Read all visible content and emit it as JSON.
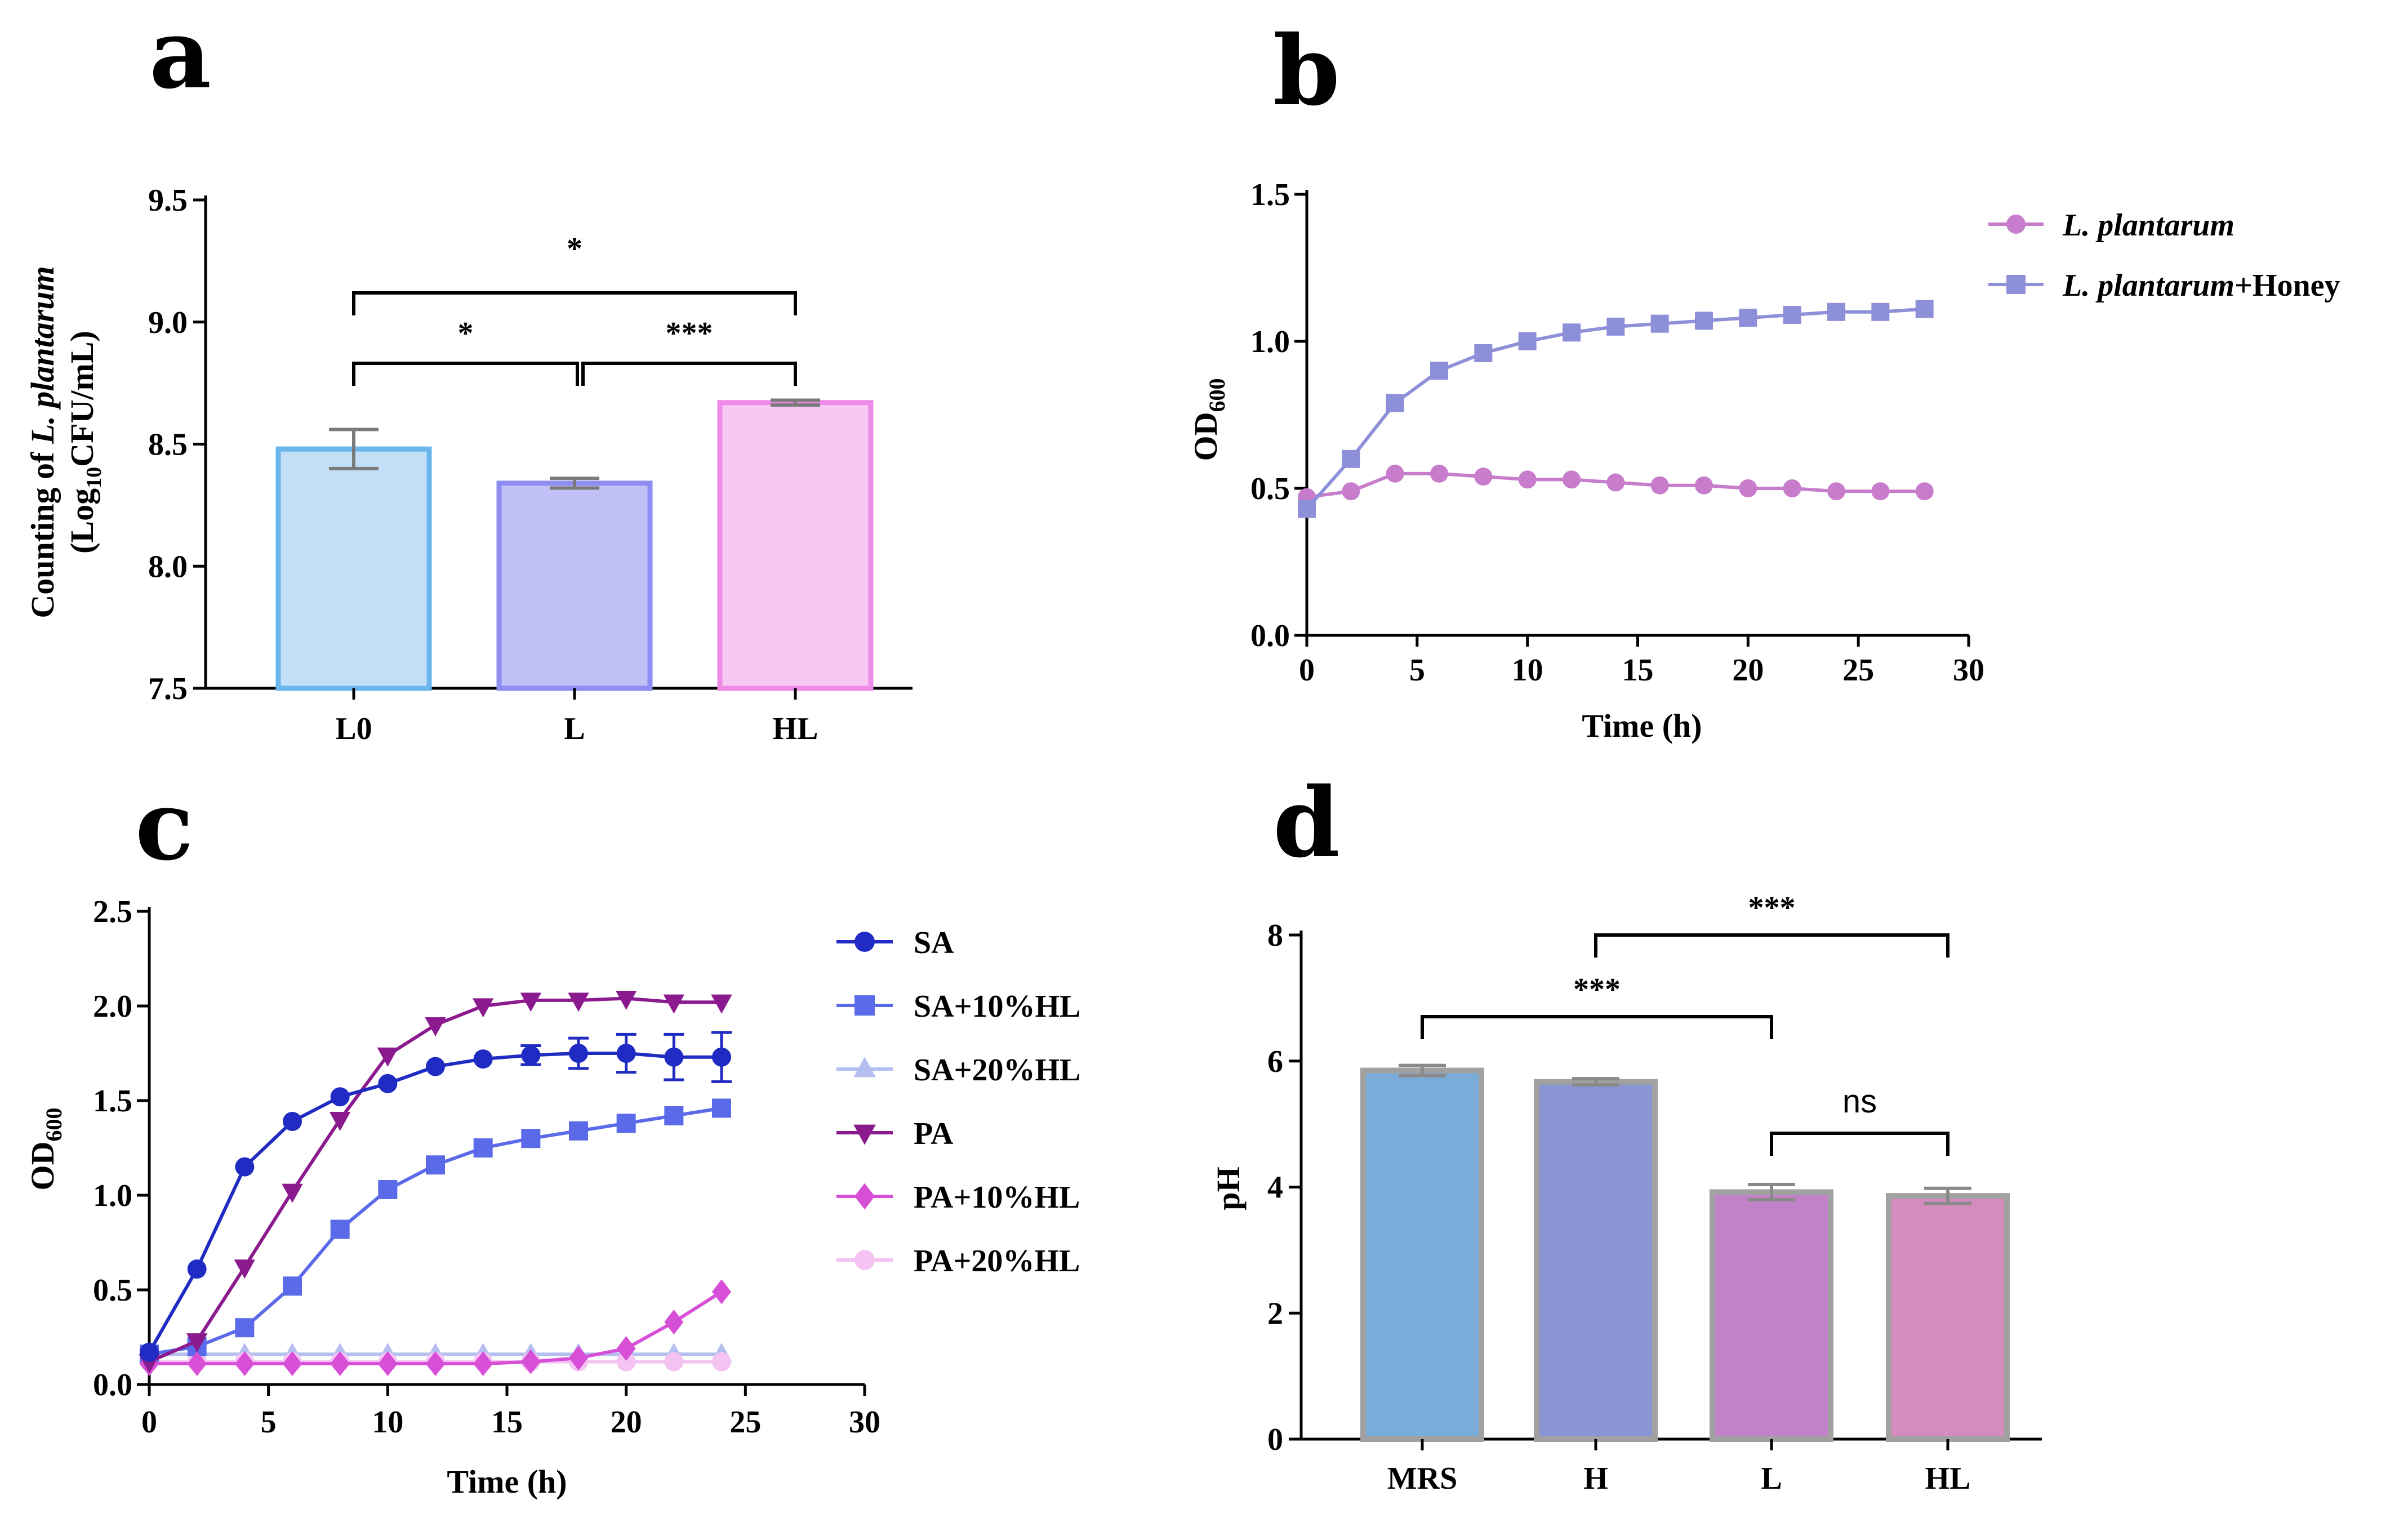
{
  "chart_data": [
    {
      "panel": "a",
      "type": "bar",
      "ylabel_prefix": "Counting of ",
      "ylabel_species": "L. plantarum",
      "ylabel_line2_a": "(Log",
      "ylabel_line2_sub": "10",
      "ylabel_line2_b": "CFU/mL)",
      "ylim": [
        7.5,
        9.5
      ],
      "yticks": [
        "7.5",
        "8.0",
        "8.5",
        "9.0",
        "9.5"
      ],
      "categories": [
        "L0",
        "L",
        "HL"
      ],
      "values": [
        8.48,
        8.34,
        8.67
      ],
      "errors": [
        0.08,
        0.02,
        0.01
      ],
      "colors_fill": [
        "#c3dff7",
        "#c1c1f7",
        "#f6c8f3"
      ],
      "colors_edge": [
        "#6cb6ee",
        "#8d8df2",
        "#ee8ae8"
      ],
      "significance": [
        {
          "from": 0,
          "to": 2,
          "label": "*"
        },
        {
          "from": 0,
          "to": 1,
          "label": "*"
        },
        {
          "from": 1,
          "to": 2,
          "label": "***"
        }
      ]
    },
    {
      "panel": "b",
      "type": "line",
      "ylabel": "OD",
      "ylabel_sub": "600",
      "xlabel": "Time (h)",
      "xlim": [
        0,
        30
      ],
      "ylim": [
        0,
        1.5
      ],
      "xticks": [
        "0",
        "5",
        "10",
        "15",
        "20",
        "25",
        "30"
      ],
      "yticks": [
        "0.0",
        "0.5",
        "1.0",
        "1.5"
      ],
      "x": [
        0,
        2,
        4,
        6,
        8,
        10,
        12,
        14,
        16,
        18,
        20,
        22,
        24,
        26,
        28
      ],
      "series": [
        {
          "name": "L. plantarum",
          "name_suffix": "",
          "marker": "circle",
          "color": "#c77ccc",
          "values": [
            0.47,
            0.49,
            0.55,
            0.55,
            0.54,
            0.53,
            0.53,
            0.52,
            0.51,
            0.51,
            0.5,
            0.5,
            0.49,
            0.49,
            0.49
          ]
        },
        {
          "name": "L. plantarum",
          "name_suffix": "+Honey",
          "marker": "square",
          "color": "#8d8fd9",
          "values": [
            0.43,
            0.6,
            0.79,
            0.9,
            0.96,
            1.0,
            1.03,
            1.05,
            1.06,
            1.07,
            1.08,
            1.09,
            1.1,
            1.1,
            1.11
          ]
        }
      ]
    },
    {
      "panel": "c",
      "type": "line",
      "ylabel": "OD",
      "ylabel_sub": "600",
      "xlabel": "Time (h)",
      "xlim": [
        0,
        30
      ],
      "ylim": [
        0,
        2.5
      ],
      "xticks": [
        "0",
        "5",
        "10",
        "15",
        "20",
        "25",
        "30"
      ],
      "yticks": [
        "0.0",
        "0.5",
        "1.0",
        "1.5",
        "2.0",
        "2.5"
      ],
      "x": [
        0,
        2,
        4,
        6,
        8,
        10,
        12,
        14,
        16,
        18,
        20,
        22,
        24
      ],
      "series": [
        {
          "name": "SA",
          "marker": "circle",
          "color": "#1f2bc2",
          "values": [
            0.17,
            0.61,
            1.15,
            1.39,
            1.52,
            1.59,
            1.68,
            1.72,
            1.74,
            1.75,
            1.75,
            1.73,
            1.73
          ],
          "errors": [
            0,
            0,
            0,
            0,
            0,
            0,
            0,
            0,
            0.05,
            0.08,
            0.1,
            0.12,
            0.13
          ]
        },
        {
          "name": "SA+10%HL",
          "marker": "square",
          "color": "#5a6ae8",
          "values": [
            0.16,
            0.2,
            0.3,
            0.52,
            0.82,
            1.03,
            1.16,
            1.25,
            1.3,
            1.34,
            1.38,
            1.42,
            1.46
          ]
        },
        {
          "name": "SA+20%HL",
          "marker": "triangle-up",
          "color": "#b4bff0",
          "values": [
            0.16,
            0.16,
            0.16,
            0.16,
            0.16,
            0.16,
            0.16,
            0.16,
            0.16,
            0.16,
            0.16,
            0.16,
            0.16
          ]
        },
        {
          "name": "PA",
          "marker": "triangle-down",
          "color": "#8b1a8f",
          "values": [
            0.12,
            0.23,
            0.62,
            1.02,
            1.4,
            1.74,
            1.9,
            2.0,
            2.03,
            2.03,
            2.04,
            2.02,
            2.02
          ]
        },
        {
          "name": "PA+10%HL",
          "marker": "diamond",
          "color": "#d64fd6",
          "values": [
            0.11,
            0.11,
            0.11,
            0.11,
            0.11,
            0.11,
            0.11,
            0.11,
            0.12,
            0.14,
            0.19,
            0.33,
            0.49
          ]
        },
        {
          "name": "PA+20%HL",
          "marker": "circle",
          "color": "#f4c3f2",
          "values": [
            0.12,
            0.12,
            0.12,
            0.12,
            0.12,
            0.12,
            0.12,
            0.12,
            0.12,
            0.12,
            0.12,
            0.12,
            0.12
          ]
        }
      ]
    },
    {
      "panel": "d",
      "type": "bar",
      "ylabel": "pH",
      "ylim": [
        0,
        8
      ],
      "yticks": [
        "0",
        "2",
        "4",
        "6",
        "8"
      ],
      "categories": [
        "MRS",
        "H",
        "L",
        "HL"
      ],
      "values": [
        5.85,
        5.67,
        3.92,
        3.86
      ],
      "errors": [
        0.08,
        0.05,
        0.12,
        0.12
      ],
      "colors_fill": [
        "#79acd8",
        "#8a95d5",
        "#c282c8",
        "#d38cbd"
      ],
      "edge_color": "#a1a1a1",
      "significance": [
        {
          "from": 1,
          "to": 3,
          "label": "***",
          "font": "serif"
        },
        {
          "from": 0,
          "to": 2,
          "label": "***",
          "font": "serif"
        },
        {
          "from": 2,
          "to": 3,
          "label": "ns",
          "font": "sans"
        }
      ]
    }
  ],
  "panel_letters": [
    "a",
    "b",
    "c",
    "d"
  ]
}
